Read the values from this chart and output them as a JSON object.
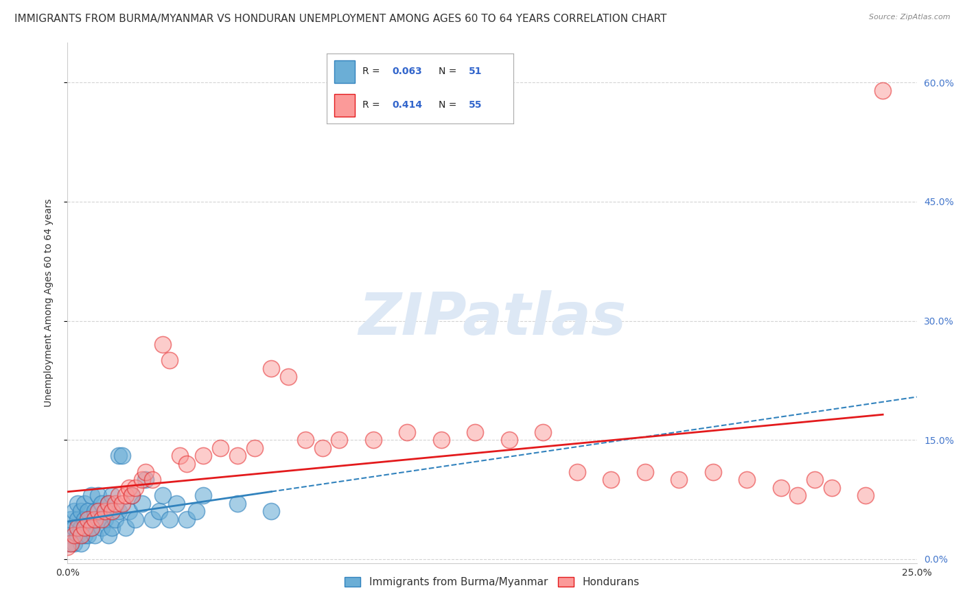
{
  "title": "IMMIGRANTS FROM BURMA/MYANMAR VS HONDURAN UNEMPLOYMENT AMONG AGES 60 TO 64 YEARS CORRELATION CHART",
  "source": "Source: ZipAtlas.com",
  "ylabel": "Unemployment Among Ages 60 to 64 years",
  "xlim": [
    0.0,
    0.25
  ],
  "ylim": [
    -0.005,
    0.65
  ],
  "yticks": [
    0.0,
    0.15,
    0.3,
    0.45,
    0.6
  ],
  "yticklabels": [
    "0.0%",
    "15.0%",
    "30.0%",
    "45.0%",
    "60.0%"
  ],
  "xticks": [
    0.0,
    0.25
  ],
  "xticklabels": [
    "0.0%",
    "25.0%"
  ],
  "grid_color": "#c8c8c8",
  "background_color": "#ffffff",
  "blue_scatter_x": [
    0.0,
    0.001,
    0.001,
    0.001,
    0.002,
    0.002,
    0.002,
    0.003,
    0.003,
    0.003,
    0.004,
    0.004,
    0.004,
    0.005,
    0.005,
    0.005,
    0.006,
    0.006,
    0.007,
    0.007,
    0.008,
    0.008,
    0.009,
    0.009,
    0.01,
    0.01,
    0.011,
    0.012,
    0.012,
    0.013,
    0.013,
    0.014,
    0.015,
    0.015,
    0.016,
    0.017,
    0.018,
    0.019,
    0.02,
    0.022,
    0.023,
    0.025,
    0.027,
    0.028,
    0.03,
    0.032,
    0.035,
    0.038,
    0.04,
    0.05,
    0.06
  ],
  "blue_scatter_y": [
    0.02,
    0.02,
    0.03,
    0.05,
    0.02,
    0.04,
    0.06,
    0.03,
    0.05,
    0.07,
    0.02,
    0.04,
    0.06,
    0.03,
    0.05,
    0.07,
    0.03,
    0.06,
    0.04,
    0.08,
    0.03,
    0.06,
    0.05,
    0.08,
    0.04,
    0.07,
    0.05,
    0.03,
    0.07,
    0.04,
    0.08,
    0.05,
    0.13,
    0.06,
    0.13,
    0.04,
    0.06,
    0.08,
    0.05,
    0.07,
    0.1,
    0.05,
    0.06,
    0.08,
    0.05,
    0.07,
    0.05,
    0.06,
    0.08,
    0.07,
    0.06
  ],
  "pink_scatter_x": [
    0.0,
    0.001,
    0.002,
    0.003,
    0.004,
    0.005,
    0.006,
    0.007,
    0.008,
    0.009,
    0.01,
    0.011,
    0.012,
    0.013,
    0.014,
    0.015,
    0.016,
    0.017,
    0.018,
    0.019,
    0.02,
    0.022,
    0.023,
    0.025,
    0.028,
    0.03,
    0.033,
    0.035,
    0.04,
    0.045,
    0.05,
    0.055,
    0.06,
    0.065,
    0.07,
    0.075,
    0.08,
    0.09,
    0.1,
    0.11,
    0.12,
    0.13,
    0.14,
    0.15,
    0.16,
    0.17,
    0.18,
    0.19,
    0.2,
    0.21,
    0.215,
    0.22,
    0.225,
    0.235,
    0.24
  ],
  "pink_scatter_y": [
    0.015,
    0.02,
    0.03,
    0.04,
    0.03,
    0.04,
    0.05,
    0.04,
    0.05,
    0.06,
    0.05,
    0.06,
    0.07,
    0.06,
    0.07,
    0.08,
    0.07,
    0.08,
    0.09,
    0.08,
    0.09,
    0.1,
    0.11,
    0.1,
    0.27,
    0.25,
    0.13,
    0.12,
    0.13,
    0.14,
    0.13,
    0.14,
    0.24,
    0.23,
    0.15,
    0.14,
    0.15,
    0.15,
    0.16,
    0.15,
    0.16,
    0.15,
    0.16,
    0.11,
    0.1,
    0.11,
    0.1,
    0.11,
    0.1,
    0.09,
    0.08,
    0.1,
    0.09,
    0.08,
    0.59
  ],
  "blue_color": "#6baed6",
  "blue_edge": "#3182bd",
  "blue_line": "#3182bd",
  "pink_color": "#fb9a99",
  "pink_edge": "#e31a1c",
  "pink_line": "#e31a1c",
  "title_fontsize": 11,
  "label_fontsize": 10,
  "tick_fontsize": 10,
  "legend_fontsize": 11,
  "R_blue": 0.063,
  "N_blue": 51,
  "R_pink": 0.414,
  "N_pink": 55
}
